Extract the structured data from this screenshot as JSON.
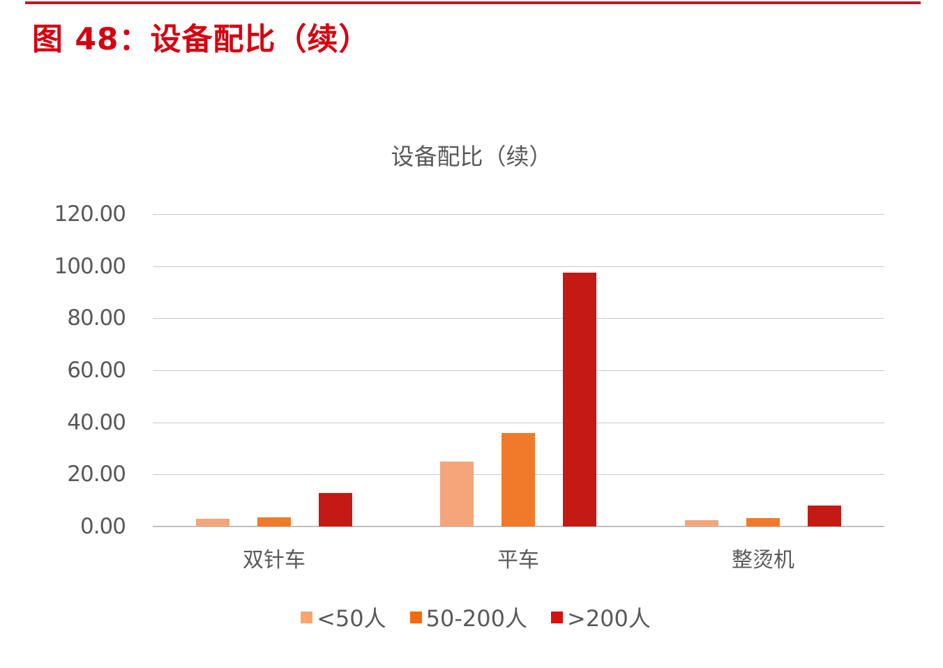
{
  "figure": {
    "title": "图 48：设备配比（续）",
    "rule_color": "#c8161d",
    "title_color": "#d7000f"
  },
  "chart_data": {
    "type": "bar",
    "title": "设备配比（续）",
    "xlabel": "",
    "ylabel": "",
    "ylim": [
      0,
      120
    ],
    "yticks": [
      0,
      20,
      40,
      60,
      80,
      100,
      120
    ],
    "ytick_labels": [
      "0.00",
      "20.00",
      "40.00",
      "60.00",
      "80.00",
      "100.00",
      "120.00"
    ],
    "grid": true,
    "legend_position": "bottom",
    "categories": [
      "双针车",
      "平车",
      "整烫机"
    ],
    "series": [
      {
        "name": "<50人",
        "color": "#f4a57a",
        "values": [
          2.9,
          24.9,
          2.3
        ]
      },
      {
        "name": "50-200人",
        "color": "#f07a2a",
        "values": [
          3.4,
          35.9,
          3.1
        ]
      },
      {
        "name": ">200人",
        "color": "#c41a14",
        "values": [
          12.8,
          97.5,
          8.0
        ]
      }
    ],
    "legend_swatch_colors": [
      "#f9a66c",
      "#f56a0c",
      "#d8100e"
    ]
  }
}
